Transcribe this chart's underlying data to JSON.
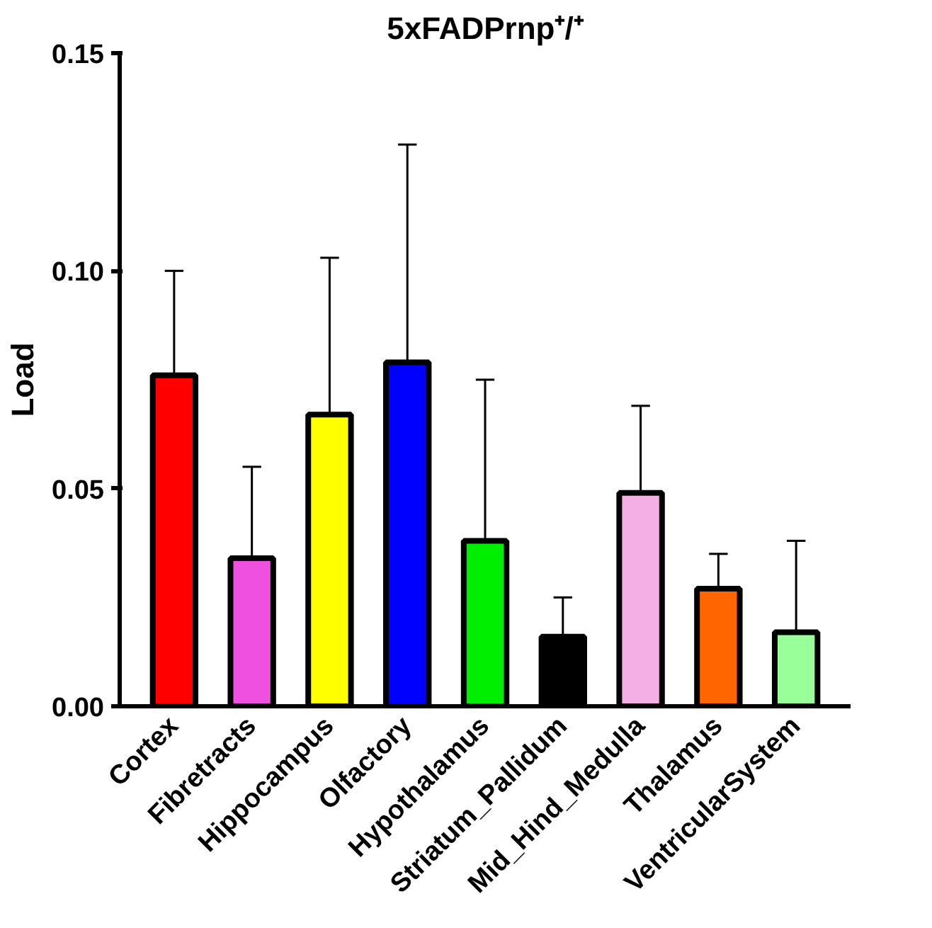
{
  "chart_data": {
    "type": "bar",
    "title": "5xFADPrnp⁺/⁺",
    "ylabel": "Load",
    "categories": [
      "Cortex",
      "Fibretracts",
      "Hippocampus",
      "Olfactory",
      "Hypothalamus",
      "Striatum_Pallidum",
      "Mid_Hind_Medulla",
      "Thalamus",
      "VentricularSystem"
    ],
    "values": [
      0.076,
      0.034,
      0.067,
      0.079,
      0.038,
      0.016,
      0.049,
      0.027,
      0.017
    ],
    "errors": [
      [
        0.076,
        0.1
      ],
      [
        0.034,
        0.055
      ],
      [
        0.067,
        0.103
      ],
      [
        0.079,
        0.129
      ],
      [
        0.038,
        0.075
      ],
      [
        0.016,
        0.025
      ],
      [
        0.049,
        0.069
      ],
      [
        0.027,
        0.035
      ],
      [
        0.017,
        0.038
      ]
    ],
    "colors": [
      "#ff0000",
      "#f050e0",
      "#ffff00",
      "#0000ff",
      "#00ee00",
      "#000000",
      "#f4b0e4",
      "#ff6600",
      "#99ff99"
    ],
    "ylim": [
      0,
      0.15
    ],
    "yticks": [
      {
        "value": 0,
        "label": "0.00"
      },
      {
        "value": 0.05,
        "label": "0.05"
      },
      {
        "value": 0.1,
        "label": "0.10"
      },
      {
        "value": 0.15,
        "label": "0.15"
      }
    ],
    "grid": false
  }
}
